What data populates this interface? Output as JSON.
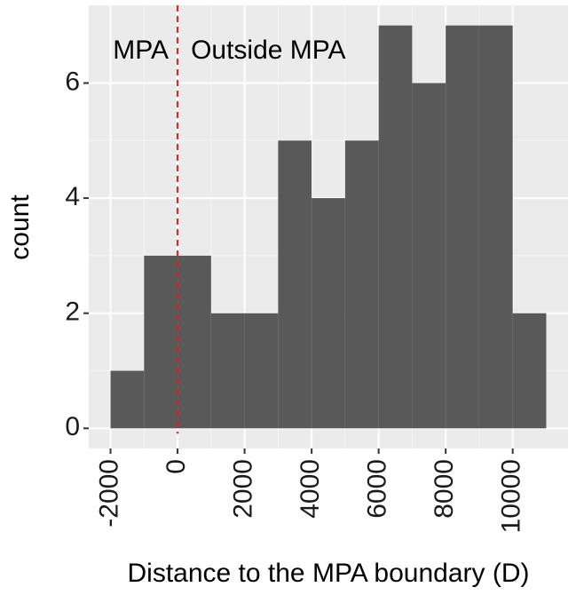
{
  "chart_data": {
    "type": "histogram",
    "xlabel": "Distance to the MPA boundary (D)",
    "ylabel": "count",
    "bins": [
      -2000,
      -1000,
      0,
      1000,
      2000,
      3000,
      4000,
      5000,
      6000,
      7000,
      8000,
      9000,
      10000,
      11000
    ],
    "values": [
      1,
      3,
      3,
      2,
      2,
      5,
      4,
      5,
      7,
      6,
      7,
      7,
      2
    ],
    "color": "#595959",
    "xlim": [
      -2650,
      11650
    ],
    "xticks": [
      -2000,
      0,
      2000,
      4000,
      6000,
      8000,
      10000
    ],
    "ylim": [
      -0.35,
      7.35
    ],
    "yticks": [
      0,
      2,
      4,
      6
    ],
    "grid": true,
    "vline": {
      "x": 0,
      "color": "#e41a1c"
    },
    "annotations": [
      "MPA",
      "Outside MPA"
    ]
  }
}
